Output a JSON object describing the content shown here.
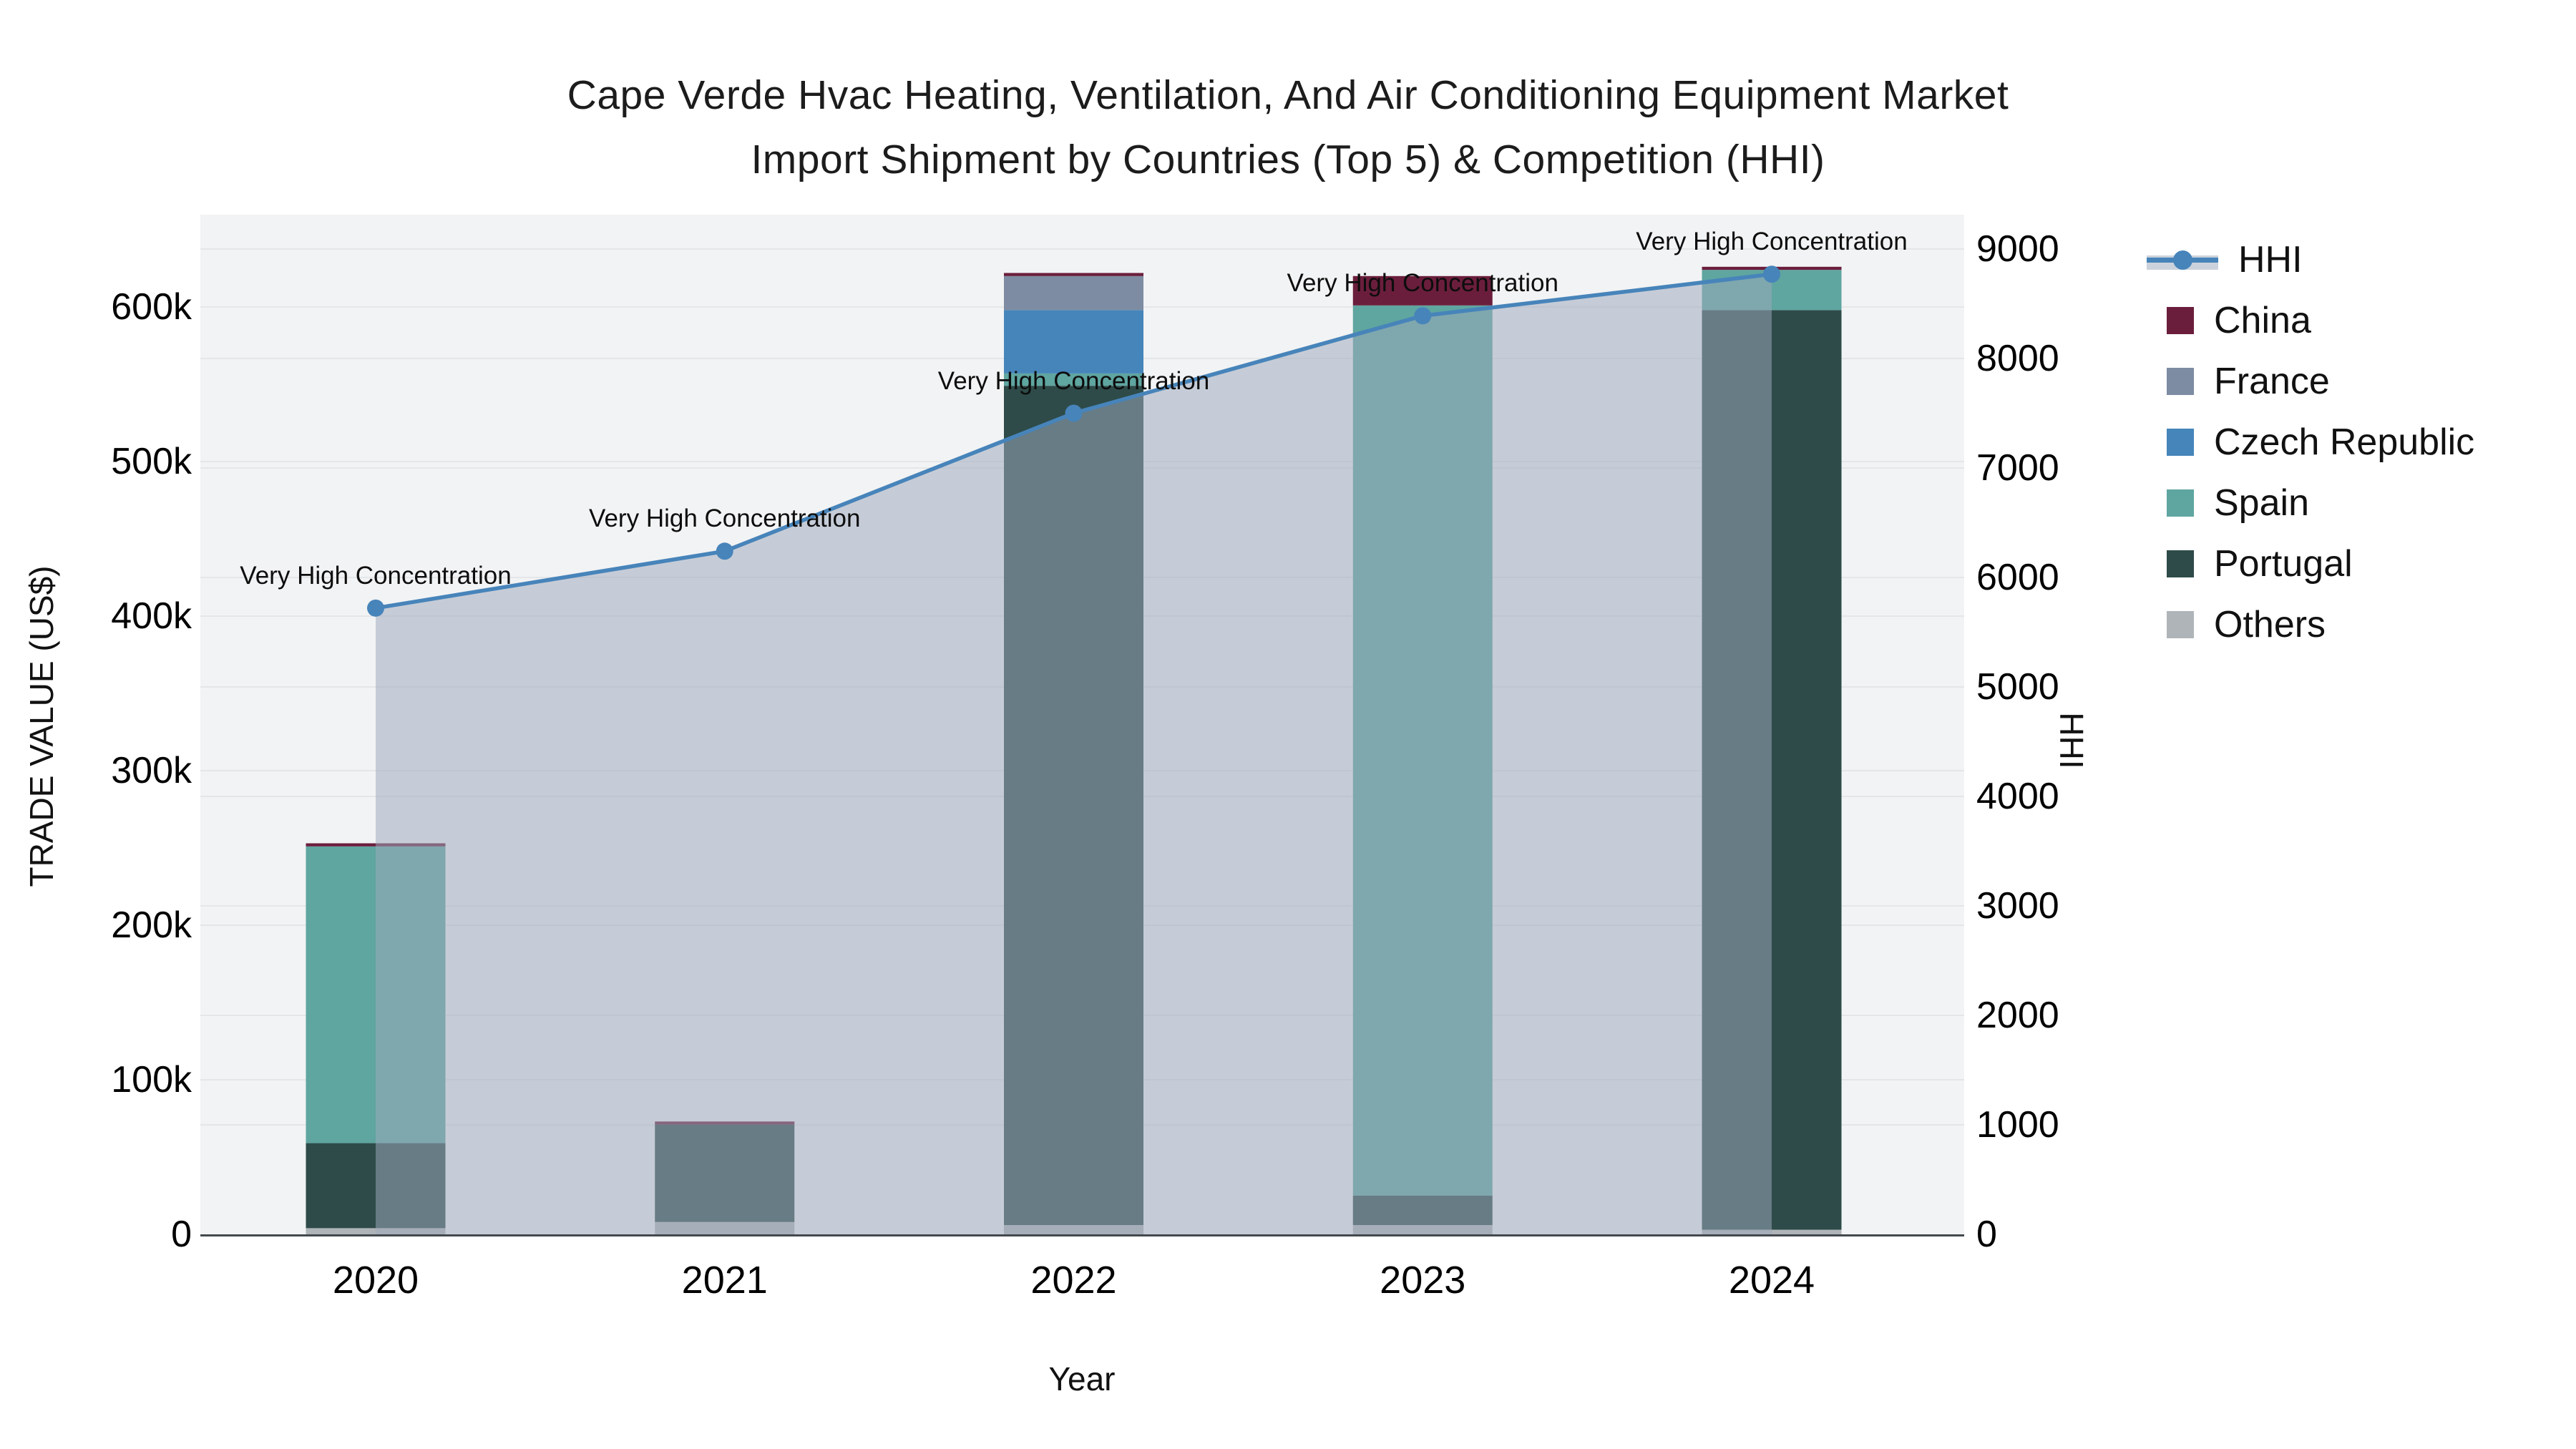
{
  "title": {
    "line1": "Cape Verde Hvac Heating, Ventilation, And Air Conditioning Equipment Market",
    "line2": "Import Shipment by Countries (Top 5) & Competition (HHI)"
  },
  "axes": {
    "left": {
      "title": "TRADE VALUE (US$)",
      "tick_labels": [
        "0",
        "100k",
        "200k",
        "300k",
        "400k",
        "500k",
        "600k"
      ]
    },
    "right": {
      "title": "HHI",
      "tick_labels": [
        "0",
        "1000",
        "2000",
        "3000",
        "4000",
        "5000",
        "6000",
        "7000",
        "8000",
        "9000"
      ]
    },
    "x": {
      "title": "Year",
      "tick_labels": [
        "2020",
        "2021",
        "2022",
        "2023",
        "2024"
      ]
    }
  },
  "legend": {
    "items": [
      {
        "label": "HHI",
        "kind": "line",
        "color": "#4784BA"
      },
      {
        "label": "China",
        "kind": "swatch",
        "color": "#6B1E3C"
      },
      {
        "label": "France",
        "kind": "swatch",
        "color": "#7D8CA2"
      },
      {
        "label": "Czech Republic",
        "kind": "swatch",
        "color": "#4585BA"
      },
      {
        "label": "Spain",
        "kind": "swatch",
        "color": "#5FA5A0"
      },
      {
        "label": "Portugal",
        "kind": "swatch",
        "color": "#2E4B49"
      },
      {
        "label": "Others",
        "kind": "swatch",
        "color": "#AFB4B8"
      }
    ]
  },
  "plot_style": {
    "bg": "#F2F3F4",
    "grid": "#E4E6E9",
    "axis_line": "#44494D",
    "area_fill": "#9EA9BC",
    "area_alpha": 0.52,
    "hhi_line": "#4784BA"
  },
  "chart_data": {
    "type": "bar+line",
    "title": "Cape Verde Hvac Heating, Ventilation, And Air Conditioning Equipment Market Import Shipment by Countries (Top 5) & Competition (HHI)",
    "categories": [
      "2020",
      "2021",
      "2022",
      "2023",
      "2024"
    ],
    "stack_order_bottom_to_top": [
      "Others",
      "Portugal",
      "Spain",
      "Czech Republic",
      "France",
      "China"
    ],
    "series": [
      {
        "name": "China",
        "color": "#6B1E3C",
        "values_usd": [
          2000,
          2000,
          2000,
          19000,
          2000
        ]
      },
      {
        "name": "France",
        "color": "#7D8CA2",
        "values_usd": [
          0,
          0,
          22000,
          0,
          0
        ]
      },
      {
        "name": "Czech Republic",
        "color": "#4585BA",
        "values_usd": [
          0,
          0,
          41000,
          0,
          0
        ]
      },
      {
        "name": "Spain",
        "color": "#5FA5A0",
        "values_usd": [
          192000,
          0,
          8000,
          576000,
          26000
        ]
      },
      {
        "name": "Portugal",
        "color": "#2E4B49",
        "values_usd": [
          55000,
          63000,
          543000,
          19000,
          595000
        ]
      },
      {
        "name": "Others",
        "color": "#AFB4B8",
        "values_usd": [
          4000,
          8000,
          6000,
          6000,
          3000
        ]
      }
    ],
    "hhi_line": {
      "name": "HHI",
      "color": "#4784BA",
      "values": [
        5720,
        6240,
        7500,
        8390,
        8770
      ]
    },
    "annotations": [
      "Very High Concentration",
      "Very High Concentration",
      "Very High Concentration",
      "Very High Concentration",
      "Very High Concentration"
    ],
    "xlabel": "Year",
    "ylabel_left": "TRADE VALUE (US$)",
    "ylabel_right": "HHI",
    "left_axis_range_usd": [
      0,
      660000
    ],
    "right_axis_range": [
      0,
      9320
    ],
    "grid": true,
    "legend_position": "right"
  }
}
